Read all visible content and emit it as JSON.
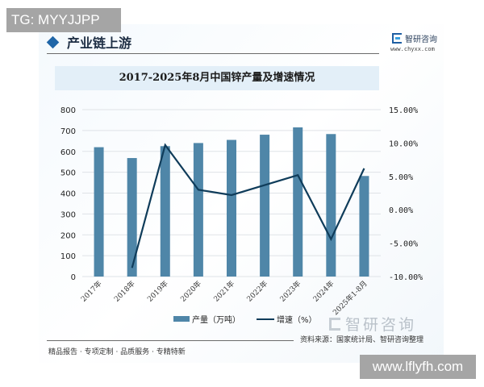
{
  "watermark_top": "TG: MYYJJPP",
  "watermark_bottom": "www.lflyfh.com",
  "section": {
    "title": "产业链上游"
  },
  "brand": {
    "name": "智研咨询",
    "url": "www.chyxx.com",
    "watermark_text": "智研咨询"
  },
  "source": "资料来源：国家统计局、智研咨询整理",
  "slogan": "精品报告 · 专项定制 · 品质服务 · 专精特新",
  "legend": {
    "bar": "产量（万吨）",
    "line": "增速（%）"
  },
  "colors": {
    "bar": "#4f86a8",
    "line": "#0f3c5a",
    "title_band": "#e3eff8",
    "accent": "#1f66a8"
  },
  "chart_data": {
    "type": "bar+line",
    "title": "2017-2025年8月中国锌产量及增速情况",
    "categories": [
      "2017年",
      "2018年",
      "2019年",
      "2020年",
      "2021年",
      "2022年",
      "2023年",
      "2024年",
      "2025年1-8月"
    ],
    "series": [
      {
        "name": "产量（万吨）",
        "type": "bar",
        "axis": "left",
        "values": [
          620,
          568,
          625,
          640,
          655,
          680,
          715,
          683,
          482
        ]
      },
      {
        "name": "增速（%）",
        "type": "line",
        "axis": "right",
        "values": [
          null,
          -8.7,
          9.7,
          3.0,
          2.2,
          3.7,
          5.2,
          -4.4,
          6.2
        ]
      }
    ],
    "y_left": {
      "ylim": [
        0,
        800
      ],
      "ticks": [
        "0",
        "100",
        "200",
        "300",
        "400",
        "500",
        "600",
        "700",
        "800"
      ]
    },
    "y_right": {
      "ylim": [
        -10,
        15
      ],
      "ticks": [
        "-10.00%",
        "-5.00%",
        "0.00%",
        "5.00%",
        "10.00%",
        "15.00%"
      ]
    },
    "grid": true,
    "legend_position": "bottom"
  }
}
